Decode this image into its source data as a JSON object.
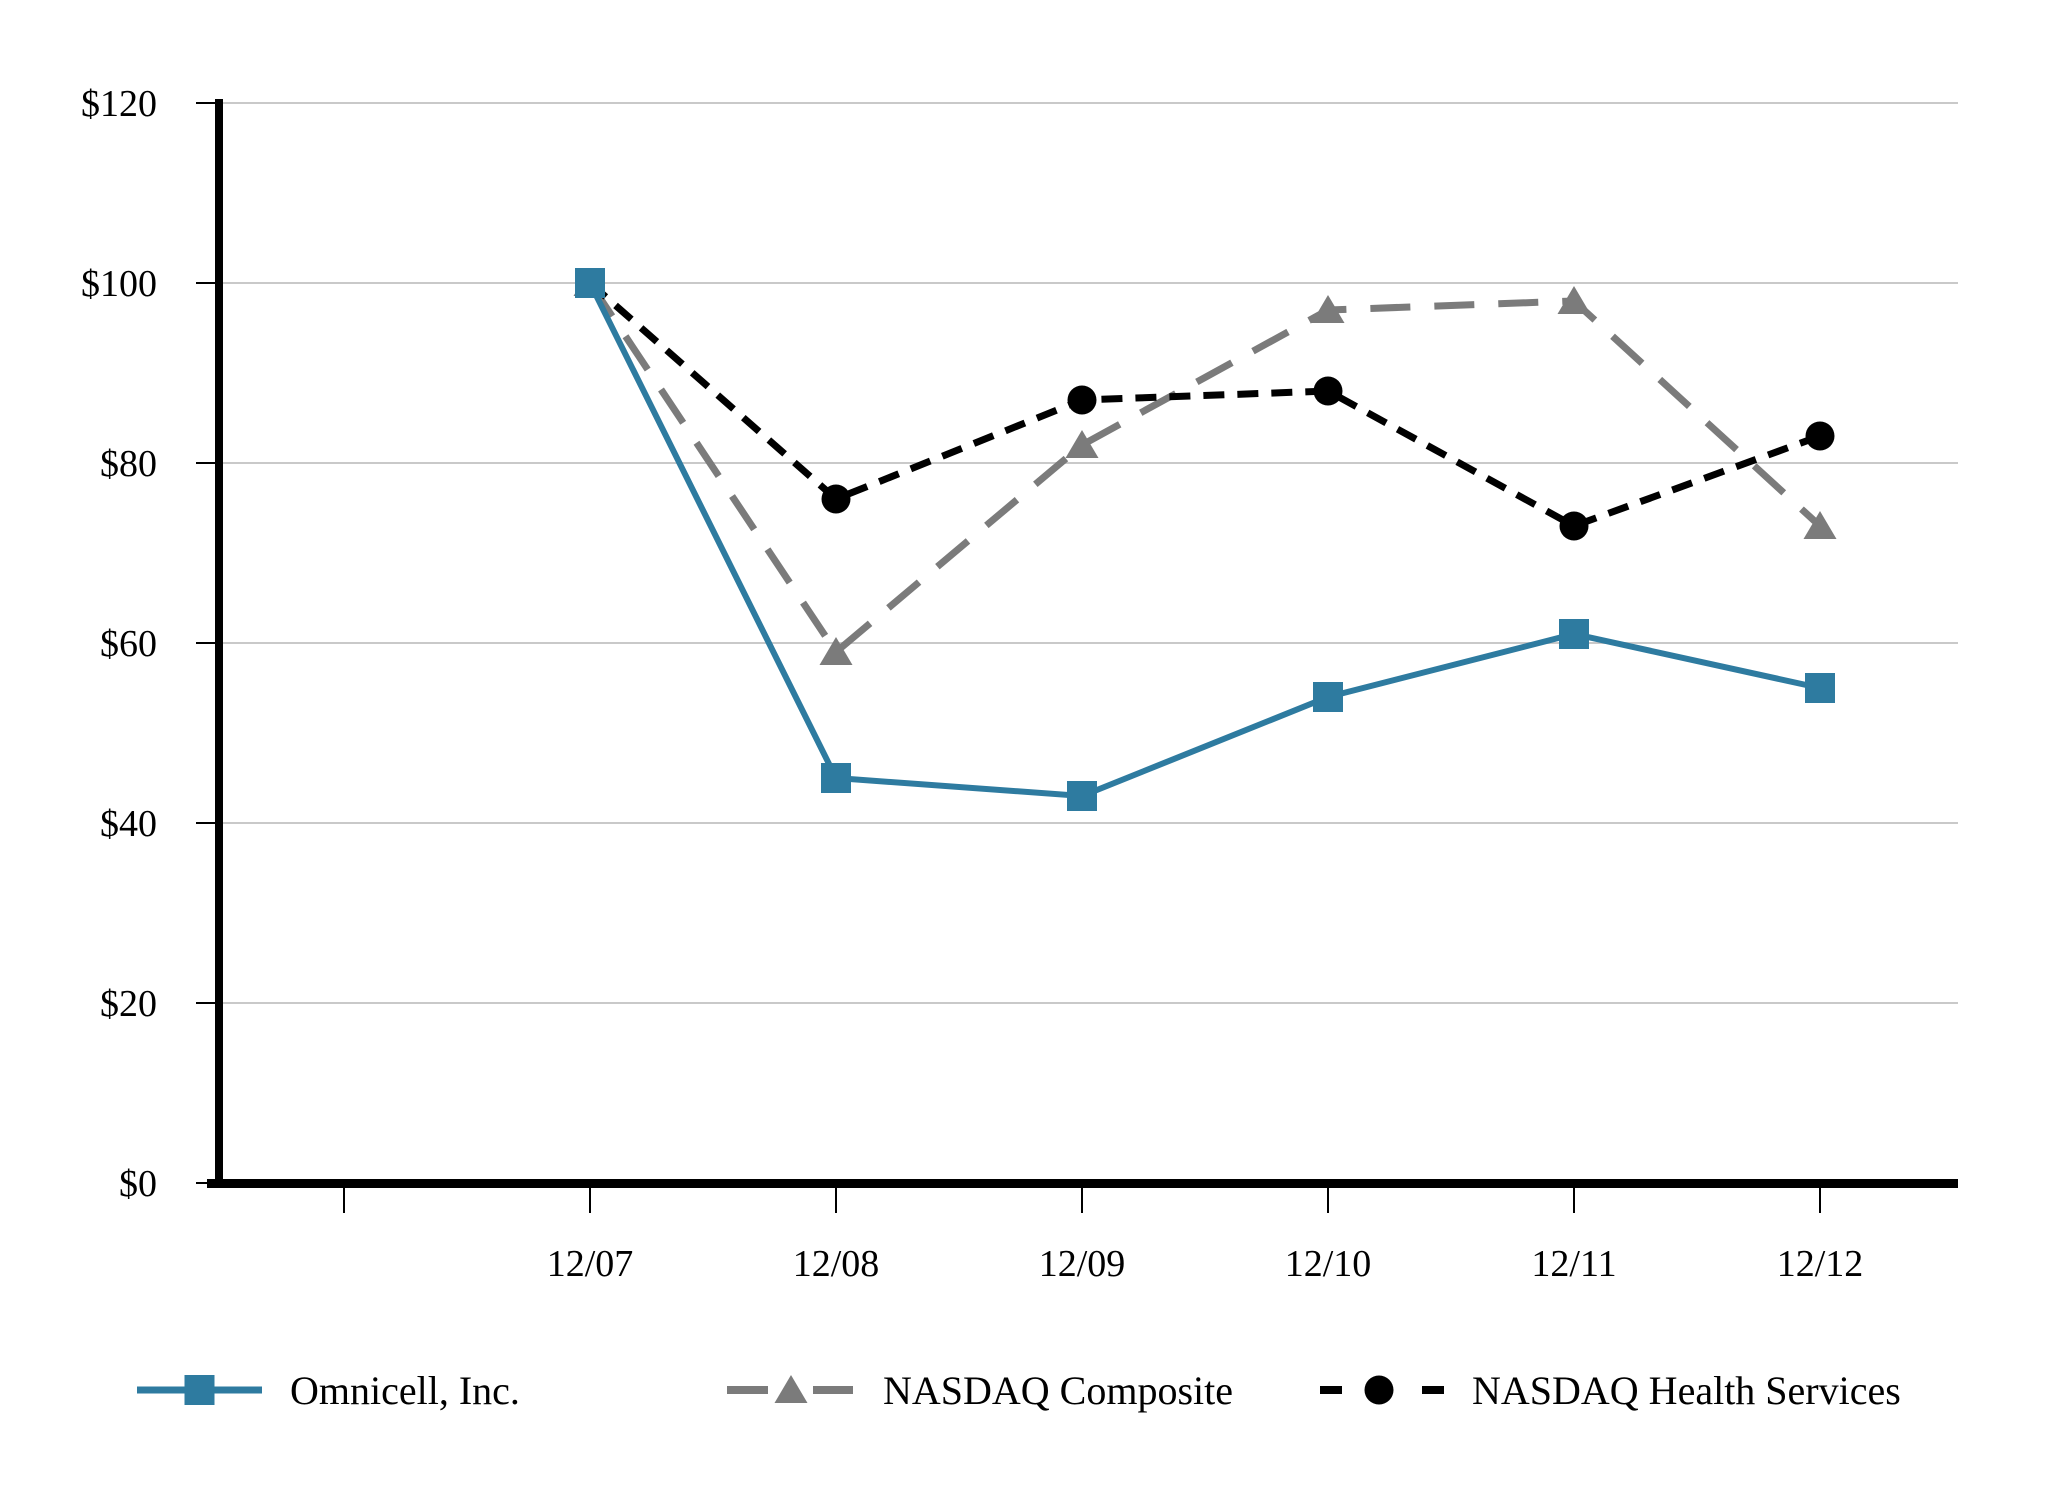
{
  "chart_data": {
    "type": "line",
    "title": "",
    "categories": [
      "12/07",
      "12/08",
      "12/09",
      "12/10",
      "12/11",
      "12/12"
    ],
    "series": [
      {
        "name": "Omnicell, Inc.",
        "color": "#2E7BA0",
        "marker": "square",
        "line_style": "solid",
        "values": [
          100,
          45,
          43,
          54,
          61,
          55
        ]
      },
      {
        "name": "NASDAQ Composite",
        "color": "#7B7B7B",
        "marker": "triangle",
        "line_style": "long-dash",
        "values": [
          100,
          59,
          82,
          97,
          98,
          73
        ]
      },
      {
        "name": "NASDAQ Health Services",
        "color": "#000000",
        "marker": "circle",
        "line_style": "short-dash",
        "values": [
          100,
          76,
          87,
          88,
          73,
          83
        ]
      }
    ],
    "y_axis": {
      "min": 0,
      "max": 120,
      "step": 20,
      "prefix": "$",
      "tick_labels": [
        "$0",
        "$20",
        "$40",
        "$60",
        "$80",
        "$100",
        "$120"
      ]
    },
    "x_axis": {
      "tick_labels": [
        "12/07",
        "12/08",
        "12/09",
        "12/10",
        "12/11",
        "12/12"
      ],
      "has_leading_unlabeled_tick": true
    },
    "grid": true,
    "gridline_color": "#C9C9C9",
    "axis_color": "#000000",
    "background_color": "#FFFFFF",
    "legend_position": "bottom"
  }
}
